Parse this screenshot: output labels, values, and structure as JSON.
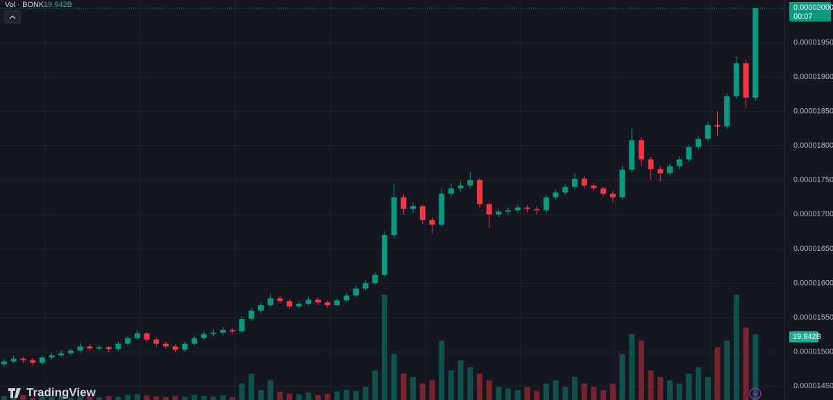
{
  "chart_data": {
    "type": "candlestick",
    "volume_title": "Vol · BONK",
    "volume_value_label": "19.942B",
    "last_price_label": "0.00002000",
    "countdown": "00:07",
    "brand": "TradingView",
    "up_color": "#089981",
    "down_color": "#f23645",
    "grid": true,
    "ylim": [
      1.43e-05,
      2.012e-05
    ],
    "yticks": [
      {
        "value": 1.45e-05,
        "label": "0.00001450"
      },
      {
        "value": 1.5e-05,
        "label": "0.00001500"
      },
      {
        "value": 1.55e-05,
        "label": "0.00001550"
      },
      {
        "value": 1.6e-05,
        "label": "0.00001600"
      },
      {
        "value": 1.65e-05,
        "label": "0.00001650"
      },
      {
        "value": 1.7e-05,
        "label": "0.00001700"
      },
      {
        "value": 1.75e-05,
        "label": "0.00001750"
      },
      {
        "value": 1.8e-05,
        "label": "0.00001800"
      },
      {
        "value": 1.85e-05,
        "label": "0.00001850"
      },
      {
        "value": 1.9e-05,
        "label": "0.00001900"
      },
      {
        "value": 1.95e-05,
        "label": "0.00001950"
      }
    ],
    "open": [
      1.482e-05,
      1.486e-05,
      1.49e-05,
      1.488e-05,
      1.484e-05,
      1.492e-05,
      1.495e-05,
      1.498e-05,
      1.502e-05,
      1.508e-05,
      1.505e-05,
      1.507e-05,
      1.504e-05,
      1.512e-05,
      1.52e-05,
      1.527e-05,
      1.518e-05,
      1.512e-05,
      1.508e-05,
      1.503e-05,
      1.512e-05,
      1.52e-05,
      1.526e-05,
      1.528e-05,
      1.532e-05,
      1.53e-05,
      1.548e-05,
      1.56e-05,
      1.568e-05,
      1.578e-05,
      1.574e-05,
      1.566e-05,
      1.57e-05,
      1.576e-05,
      1.572e-05,
      1.568e-05,
      1.575e-05,
      1.582e-05,
      1.592e-05,
      1.6e-05,
      1.612e-05,
      1.67e-05,
      1.725e-05,
      1.708e-05,
      1.712e-05,
      1.692e-05,
      1.685e-05,
      1.73e-05,
      1.738e-05,
      1.742e-05,
      1.75e-05,
      1.715e-05,
      1.7e-05,
      1.704e-05,
      1.706e-05,
      1.71e-05,
      1.708e-05,
      1.706e-05,
      1.725e-05,
      1.732e-05,
      1.74e-05,
      1.752e-05,
      1.742e-05,
      1.738e-05,
      1.73e-05,
      1.725e-05,
      1.765e-05,
      1.808e-05,
      1.78e-05,
      1.766e-05,
      1.76e-05,
      1.77e-05,
      1.78e-05,
      1.798e-05,
      1.81e-05,
      1.83e-05,
      1.828e-05,
      1.872e-05,
      1.92e-05,
      1.87e-05
    ],
    "high": [
      1.49e-05,
      1.494e-05,
      1.493e-05,
      1.491e-05,
      1.495e-05,
      1.499e-05,
      1.502e-05,
      1.505e-05,
      1.513e-05,
      1.511e-05,
      1.51e-05,
      1.509e-05,
      1.515e-05,
      1.524e-05,
      1.532e-05,
      1.529e-05,
      1.521e-05,
      1.515e-05,
      1.511e-05,
      1.515e-05,
      1.524e-05,
      1.53e-05,
      1.533e-05,
      1.536e-05,
      1.535e-05,
      1.552e-05,
      1.564e-05,
      1.572e-05,
      1.584e-05,
      1.581e-05,
      1.577e-05,
      1.574e-05,
      1.58e-05,
      1.579e-05,
      1.575e-05,
      1.578e-05,
      1.586e-05,
      1.596e-05,
      1.604e-05,
      1.616e-05,
      1.676e-05,
      1.745e-05,
      1.73e-05,
      1.718e-05,
      1.715e-05,
      1.696e-05,
      1.738e-05,
      1.745e-05,
      1.748e-05,
      1.762e-05,
      1.753e-05,
      1.718e-05,
      1.708e-05,
      1.71e-05,
      1.714e-05,
      1.714e-05,
      1.712e-05,
      1.729e-05,
      1.736e-05,
      1.744e-05,
      1.76e-05,
      1.756e-05,
      1.746e-05,
      1.741e-05,
      1.734e-05,
      1.77e-05,
      1.825e-05,
      1.812e-05,
      1.784e-05,
      1.77e-05,
      1.774e-05,
      1.784e-05,
      1.802e-05,
      1.814e-05,
      1.835e-05,
      1.85e-05,
      1.876e-05,
      1.93e-05,
      1.925e-05,
      2e-05
    ],
    "low": [
      1.478e-05,
      1.483e-05,
      1.484e-05,
      1.48e-05,
      1.481e-05,
      1.489e-05,
      1.492e-05,
      1.495e-05,
      1.499e-05,
      1.501e-05,
      1.502e-05,
      1.5e-05,
      1.501e-05,
      1.509e-05,
      1.517e-05,
      1.514e-05,
      1.508e-05,
      1.504e-05,
      1.499e-05,
      1.5e-05,
      1.509e-05,
      1.517e-05,
      1.523e-05,
      1.524e-05,
      1.526e-05,
      1.527e-05,
      1.545e-05,
      1.556e-05,
      1.565e-05,
      1.57e-05,
      1.562e-05,
      1.563e-05,
      1.567e-05,
      1.568e-05,
      1.564e-05,
      1.565e-05,
      1.572e-05,
      1.579e-05,
      1.589e-05,
      1.597e-05,
      1.608e-05,
      1.665e-05,
      1.7e-05,
      1.702e-05,
      1.686e-05,
      1.672e-05,
      1.682e-05,
      1.726e-05,
      1.733e-05,
      1.738e-05,
      1.71e-05,
      1.68e-05,
      1.696e-05,
      1.7e-05,
      1.702e-05,
      1.703e-05,
      1.7e-05,
      1.702e-05,
      1.721e-05,
      1.728e-05,
      1.736e-05,
      1.738e-05,
      1.734e-05,
      1.726e-05,
      1.718e-05,
      1.722e-05,
      1.761e-05,
      1.77e-05,
      1.75e-05,
      1.748e-05,
      1.756e-05,
      1.766e-05,
      1.776e-05,
      1.794e-05,
      1.806e-05,
      1.815e-05,
      1.824e-05,
      1.868e-05,
      1.855e-05,
      1.866e-05
    ],
    "close": [
      1.486e-05,
      1.49e-05,
      1.488e-05,
      1.484e-05,
      1.492e-05,
      1.495e-05,
      1.498e-05,
      1.502e-05,
      1.508e-05,
      1.505e-05,
      1.507e-05,
      1.504e-05,
      1.512e-05,
      1.52e-05,
      1.527e-05,
      1.518e-05,
      1.512e-05,
      1.508e-05,
      1.503e-05,
      1.512e-05,
      1.52e-05,
      1.526e-05,
      1.528e-05,
      1.532e-05,
      1.53e-05,
      1.548e-05,
      1.56e-05,
      1.568e-05,
      1.578e-05,
      1.574e-05,
      1.566e-05,
      1.57e-05,
      1.576e-05,
      1.572e-05,
      1.568e-05,
      1.575e-05,
      1.582e-05,
      1.592e-05,
      1.6e-05,
      1.612e-05,
      1.67e-05,
      1.725e-05,
      1.708e-05,
      1.712e-05,
      1.692e-05,
      1.685e-05,
      1.73e-05,
      1.738e-05,
      1.742e-05,
      1.75e-05,
      1.715e-05,
      1.7e-05,
      1.704e-05,
      1.706e-05,
      1.71e-05,
      1.708e-05,
      1.706e-05,
      1.725e-05,
      1.732e-05,
      1.74e-05,
      1.752e-05,
      1.742e-05,
      1.738e-05,
      1.73e-05,
      1.725e-05,
      1.765e-05,
      1.808e-05,
      1.78e-05,
      1.766e-05,
      1.76e-05,
      1.77e-05,
      1.78e-05,
      1.798e-05,
      1.81e-05,
      1.83e-05,
      1.828e-05,
      1.872e-05,
      1.92e-05,
      1.87e-05,
      2e-05
    ],
    "volume": [
      1.2,
      0.8,
      1.5,
      0.6,
      1.0,
      0.9,
      1.3,
      0.7,
      1.1,
      0.9,
      0.8,
      1.2,
      1.0,
      1.5,
      1.8,
      1.4,
      1.1,
      0.9,
      1.2,
      1.0,
      1.6,
      1.3,
      1.1,
      1.4,
      0.9,
      5,
      8,
      3,
      6,
      2.5,
      2,
      1.8,
      2.2,
      1.5,
      1.9,
      2.6,
      3.1,
      2.8,
      4,
      9,
      32,
      14,
      8,
      7,
      5,
      6,
      18,
      9,
      12,
      10,
      8,
      6,
      4,
      3.5,
      3,
      4,
      2.8,
      5,
      6,
      4,
      7,
      5,
      4,
      3,
      5,
      14,
      20,
      18,
      9,
      7,
      6,
      5,
      8,
      10,
      7,
      16,
      18,
      32,
      22,
      19.942
    ]
  }
}
